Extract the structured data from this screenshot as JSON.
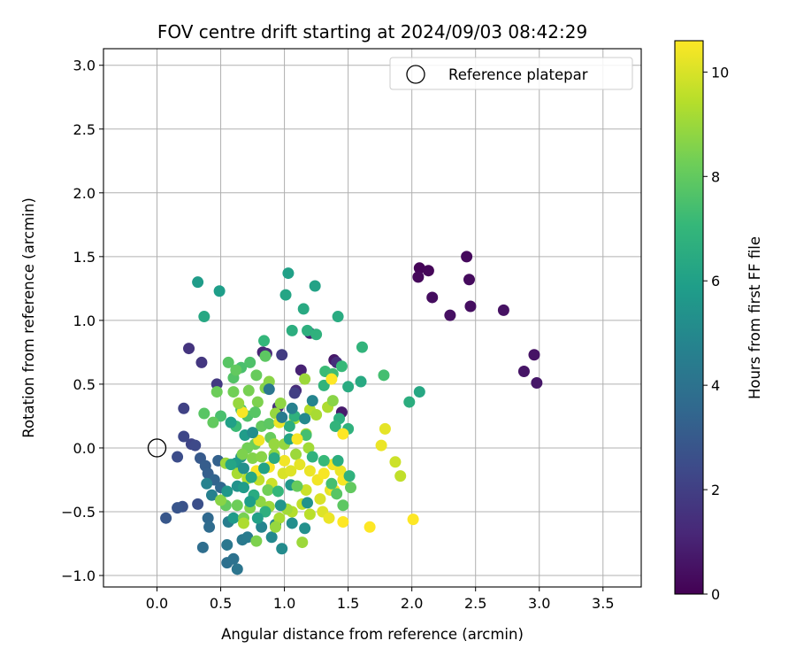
{
  "chart_data": {
    "type": "scatter",
    "title": "FOV centre drift starting at 2024/09/03 08:42:29",
    "xlabel": "Angular distance from reference (arcmin)",
    "ylabel": "Rotation from reference (arcmin)",
    "xlim": [
      -0.42,
      3.8
    ],
    "ylim": [
      -1.09,
      3.13
    ],
    "xticks": [
      "0.0",
      "0.5",
      "1.0",
      "1.5",
      "2.0",
      "2.5",
      "3.0",
      "3.5"
    ],
    "yticks": [
      "−1.0",
      "−0.5",
      "0.0",
      "0.5",
      "1.0",
      "1.5",
      "2.0",
      "2.5",
      "3.0"
    ],
    "grid": true,
    "legend_position": "top-right",
    "reference": {
      "label": "Reference platepar",
      "x": 0.0,
      "y": 0.0,
      "marker": "open-circle"
    },
    "colorbar": {
      "label": "Hours from first FF file",
      "colormap": "viridis",
      "range": [
        0,
        10.6
      ],
      "ticks": [
        "0",
        "2",
        "4",
        "6",
        "8",
        "10"
      ],
      "stops": [
        "#440154",
        "#482878",
        "#3e4989",
        "#31688e",
        "#26828e",
        "#1f9e89",
        "#35b779",
        "#6ece58",
        "#b5de2b",
        "#fde725"
      ]
    },
    "points": [
      [
        2.06,
        1.41,
        0.1
      ],
      [
        2.13,
        1.39,
        0.15
      ],
      [
        2.05,
        1.34,
        0.2
      ],
      [
        2.43,
        1.5,
        0.25
      ],
      [
        2.45,
        1.32,
        0.3
      ],
      [
        2.16,
        1.18,
        0.35
      ],
      [
        2.46,
        1.11,
        0.4
      ],
      [
        2.3,
        1.04,
        0.45
      ],
      [
        2.72,
        1.08,
        0.5
      ],
      [
        2.96,
        0.73,
        0.55
      ],
      [
        2.88,
        0.6,
        0.6
      ],
      [
        2.98,
        0.51,
        0.65
      ],
      [
        1.39,
        0.69,
        0.7
      ],
      [
        1.45,
        0.28,
        0.8
      ],
      [
        1.2,
        0.9,
        0.9
      ],
      [
        1.13,
        0.61,
        1.0
      ],
      [
        0.83,
        0.75,
        1.1
      ],
      [
        0.86,
        0.74,
        1.2
      ],
      [
        1.09,
        0.45,
        1.3
      ],
      [
        1.41,
        0.67,
        1.4
      ],
      [
        0.95,
        0.32,
        1.5
      ],
      [
        0.25,
        0.78,
        1.6
      ],
      [
        0.35,
        0.67,
        1.7
      ],
      [
        0.47,
        0.5,
        1.8
      ],
      [
        0.98,
        0.73,
        1.9
      ],
      [
        1.08,
        0.43,
        2.0
      ],
      [
        0.21,
        0.31,
        2.1
      ],
      [
        0.27,
        0.03,
        2.2
      ],
      [
        0.21,
        0.09,
        2.3
      ],
      [
        0.3,
        0.02,
        2.4
      ],
      [
        0.16,
        -0.07,
        2.5
      ],
      [
        0.32,
        -0.44,
        2.6
      ],
      [
        0.2,
        -0.46,
        2.7
      ],
      [
        0.16,
        -0.47,
        2.8
      ],
      [
        0.07,
        -0.55,
        2.9
      ],
      [
        0.34,
        -0.08,
        3.0
      ],
      [
        0.38,
        -0.14,
        3.1
      ],
      [
        0.4,
        -0.2,
        3.2
      ],
      [
        0.48,
        -0.1,
        3.3
      ],
      [
        0.45,
        -0.25,
        3.4
      ],
      [
        0.5,
        -0.31,
        3.5
      ],
      [
        0.4,
        -0.55,
        3.6
      ],
      [
        0.41,
        -0.62,
        3.7
      ],
      [
        0.36,
        -0.78,
        3.8
      ],
      [
        0.55,
        -0.9,
        3.9
      ],
      [
        0.6,
        -0.87,
        4.0
      ],
      [
        0.63,
        -0.95,
        4.1
      ],
      [
        0.55,
        -0.76,
        4.2
      ],
      [
        0.67,
        -0.72,
        4.3
      ],
      [
        0.71,
        -0.7,
        4.4
      ],
      [
        0.56,
        -0.58,
        4.5
      ],
      [
        0.43,
        -0.37,
        4.6
      ],
      [
        0.39,
        -0.28,
        4.7
      ],
      [
        0.82,
        -0.62,
        4.8
      ],
      [
        0.93,
        -0.6,
        4.9
      ],
      [
        0.9,
        -0.7,
        5.0
      ],
      [
        0.98,
        -0.79,
        5.1
      ],
      [
        1.06,
        -0.59,
        5.2
      ],
      [
        1.16,
        -0.63,
        5.3
      ],
      [
        0.63,
        -0.3,
        5.4
      ],
      [
        0.66,
        -0.07,
        5.5
      ],
      [
        1.05,
        -0.29,
        5.6
      ],
      [
        0.6,
        -0.55,
        5.7
      ],
      [
        0.32,
        1.3,
        5.8
      ],
      [
        0.49,
        1.23,
        5.9
      ],
      [
        1.03,
        1.37,
        6.0
      ],
      [
        1.24,
        1.27,
        6.1
      ],
      [
        1.01,
        1.2,
        6.2
      ],
      [
        0.37,
        1.03,
        6.3
      ],
      [
        1.15,
        1.09,
        6.4
      ],
      [
        1.42,
        1.03,
        6.5
      ],
      [
        1.06,
        0.92,
        6.6
      ],
      [
        1.18,
        0.92,
        6.7
      ],
      [
        1.25,
        0.89,
        6.8
      ],
      [
        1.61,
        0.79,
        6.9
      ],
      [
        0.84,
        0.84,
        7.0
      ],
      [
        1.45,
        0.64,
        7.1
      ],
      [
        1.32,
        0.6,
        7.2
      ],
      [
        1.38,
        0.58,
        7.3
      ],
      [
        1.78,
        0.57,
        7.4
      ],
      [
        0.66,
        0.63,
        7.5
      ],
      [
        0.73,
        0.67,
        7.6
      ],
      [
        0.6,
        0.55,
        7.7
      ],
      [
        0.56,
        0.67,
        7.8
      ],
      [
        0.85,
        0.72,
        7.9
      ],
      [
        0.62,
        0.61,
        8.0
      ],
      [
        0.78,
        0.57,
        8.1
      ],
      [
        1.6,
        0.52,
        6.4
      ],
      [
        1.5,
        0.48,
        6.5
      ],
      [
        1.98,
        0.36,
        6.6
      ],
      [
        2.06,
        0.44,
        6.3
      ],
      [
        1.43,
        0.23,
        6.7
      ],
      [
        1.5,
        0.15,
        6.8
      ],
      [
        1.4,
        0.17,
        6.9
      ],
      [
        1.31,
        0.49,
        6.9
      ],
      [
        0.47,
        0.44,
        8.2
      ],
      [
        0.6,
        0.44,
        8.3
      ],
      [
        0.72,
        0.45,
        8.4
      ],
      [
        0.79,
        0.36,
        8.5
      ],
      [
        0.85,
        0.47,
        8.6
      ],
      [
        0.88,
        0.52,
        8.7
      ],
      [
        0.97,
        0.35,
        8.8
      ],
      [
        0.93,
        0.27,
        8.9
      ],
      [
        0.5,
        0.25,
        7.5
      ],
      [
        0.37,
        0.27,
        7.8
      ],
      [
        0.44,
        0.2,
        8.0
      ],
      [
        0.62,
        0.17,
        7.2
      ],
      [
        0.66,
        0.3,
        7.4
      ],
      [
        0.71,
        0.25,
        7.6
      ],
      [
        0.77,
        0.28,
        7.8
      ],
      [
        0.82,
        0.17,
        8.0
      ],
      [
        0.88,
        0.19,
        7.9
      ],
      [
        0.89,
        0.08,
        8.1
      ],
      [
        0.77,
        0.03,
        8.2
      ],
      [
        0.71,
        0.0,
        8.3
      ],
      [
        0.67,
        -0.05,
        8.5
      ],
      [
        0.75,
        -0.08,
        8.6
      ],
      [
        0.82,
        -0.07,
        8.7
      ],
      [
        0.92,
        -0.05,
        8.8
      ],
      [
        1.0,
        0.03,
        8.9
      ],
      [
        1.09,
        -0.05,
        9.0
      ],
      [
        1.19,
        0.0,
        9.1
      ],
      [
        1.17,
        0.11,
        9.2
      ],
      [
        1.08,
        0.23,
        9.3
      ],
      [
        1.2,
        0.3,
        9.4
      ],
      [
        1.25,
        0.26,
        9.2
      ],
      [
        1.34,
        0.32,
        9.3
      ],
      [
        1.16,
        0.54,
        9.0
      ],
      [
        1.38,
        0.37,
        8.7
      ],
      [
        1.17,
        0.1,
        7.4
      ],
      [
        1.08,
        0.25,
        6.8
      ],
      [
        1.04,
        0.17,
        6.6
      ],
      [
        1.04,
        0.07,
        6.2
      ],
      [
        0.58,
        0.2,
        6.0
      ],
      [
        0.69,
        0.1,
        5.8
      ],
      [
        0.62,
        -0.12,
        5.7
      ],
      [
        0.54,
        -0.12,
        9.0
      ],
      [
        0.63,
        -0.2,
        9.2
      ],
      [
        0.71,
        -0.24,
        9.4
      ],
      [
        0.8,
        -0.25,
        9.6
      ],
      [
        0.9,
        -0.28,
        9.8
      ],
      [
        0.99,
        -0.2,
        10.0
      ],
      [
        1.05,
        -0.18,
        10.1
      ],
      [
        1.12,
        -0.13,
        10.2
      ],
      [
        1.2,
        -0.18,
        10.3
      ],
      [
        1.26,
        -0.25,
        10.4
      ],
      [
        1.31,
        -0.2,
        10.5
      ],
      [
        1.38,
        -0.13,
        10.4
      ],
      [
        1.44,
        -0.18,
        10.3
      ],
      [
        1.46,
        -0.25,
        10.5
      ],
      [
        1.36,
        -0.33,
        10.2
      ],
      [
        1.28,
        -0.4,
        10.0
      ],
      [
        1.17,
        -0.33,
        9.8
      ],
      [
        1.14,
        -0.44,
        9.6
      ],
      [
        1.06,
        -0.5,
        9.4
      ],
      [
        0.96,
        -0.55,
        9.2
      ],
      [
        0.88,
        -0.46,
        9.0
      ],
      [
        0.81,
        -0.42,
        8.8
      ],
      [
        0.73,
        -0.47,
        8.6
      ],
      [
        0.68,
        -0.55,
        8.4
      ],
      [
        0.63,
        -0.45,
        8.2
      ],
      [
        0.54,
        -0.45,
        8.0
      ],
      [
        1.2,
        -0.52,
        9.5
      ],
      [
        1.3,
        -0.5,
        10.1
      ],
      [
        1.35,
        -0.55,
        10.3
      ],
      [
        1.46,
        -0.58,
        10.6
      ],
      [
        1.67,
        -0.62,
        10.6
      ],
      [
        2.01,
        -0.56,
        10.6
      ],
      [
        1.87,
        -0.11,
        9.8
      ],
      [
        1.91,
        -0.22,
        9.6
      ],
      [
        1.79,
        0.15,
        10.2
      ],
      [
        1.76,
        0.02,
        10.3
      ],
      [
        1.46,
        0.11,
        10.6
      ],
      [
        1.37,
        0.54,
        10.6
      ],
      [
        0.67,
        0.28,
        10.5
      ],
      [
        0.8,
        0.06,
        10.4
      ],
      [
        0.96,
        0.2,
        10.3
      ],
      [
        1.1,
        0.07,
        10.5
      ],
      [
        0.88,
        -0.15,
        10.5
      ],
      [
        1.0,
        -0.1,
        10.4
      ],
      [
        0.78,
        -0.18,
        10.5
      ],
      [
        1.39,
        -0.33,
        10.5
      ],
      [
        0.64,
        0.35,
        8.9
      ],
      [
        0.92,
        0.03,
        8.9
      ],
      [
        1.14,
        -0.74,
        9.0
      ],
      [
        0.93,
        -0.62,
        8.9
      ],
      [
        1.02,
        -0.48,
        9.1
      ],
      [
        0.68,
        -0.59,
        9.3
      ],
      [
        0.5,
        -0.41,
        8.7
      ],
      [
        0.78,
        -0.73,
        8.5
      ],
      [
        0.87,
        -0.33,
        8.3
      ],
      [
        1.1,
        -0.3,
        8.1
      ],
      [
        1.41,
        -0.36,
        7.8
      ],
      [
        1.46,
        -0.45,
        7.9
      ],
      [
        1.52,
        -0.31,
        8.0
      ],
      [
        1.37,
        -0.28,
        7.4
      ],
      [
        1.42,
        -0.1,
        6.6
      ],
      [
        1.51,
        -0.22,
        6.8
      ],
      [
        0.95,
        -0.34,
        7.0
      ],
      [
        0.85,
        -0.5,
        6.7
      ],
      [
        0.76,
        -0.37,
        6.5
      ],
      [
        0.74,
        -0.23,
        6.3
      ],
      [
        0.84,
        -0.16,
        6.1
      ],
      [
        0.92,
        -0.08,
        6.4
      ],
      [
        1.22,
        -0.07,
        6.8
      ],
      [
        1.31,
        -0.1,
        7.1
      ],
      [
        0.79,
        -0.55,
        6.0
      ],
      [
        0.73,
        -0.42,
        5.9
      ],
      [
        0.68,
        -0.31,
        5.8
      ],
      [
        0.58,
        -0.13,
        6.2
      ],
      [
        0.55,
        -0.34,
        5.6
      ],
      [
        0.97,
        -0.45,
        5.5
      ],
      [
        1.18,
        -0.43,
        5.4
      ],
      [
        0.88,
        0.46,
        4.2
      ],
      [
        0.98,
        0.24,
        4.4
      ],
      [
        1.06,
        0.31,
        4.6
      ],
      [
        1.22,
        0.37,
        4.8
      ],
      [
        1.16,
        0.23,
        5.0
      ],
      [
        0.75,
        0.12,
        5.2
      ],
      [
        0.68,
        -0.16,
        5.3
      ]
    ]
  }
}
